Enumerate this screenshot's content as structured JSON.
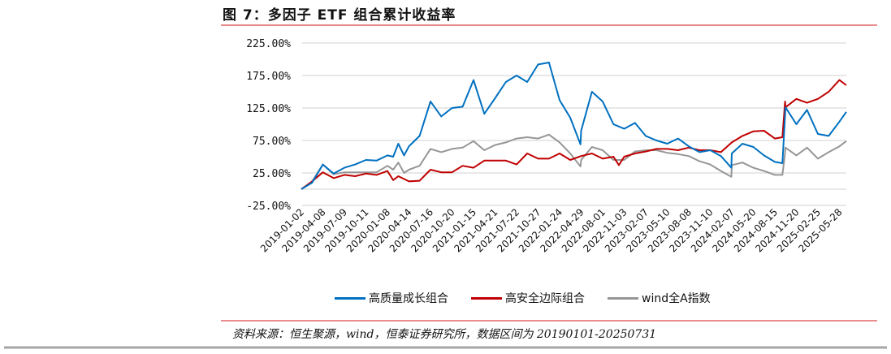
{
  "header": {
    "title": "图 7：多因子 ETF 组合累计收益率"
  },
  "footer": {
    "source": "资料来源：恒生聚源，wind，恒泰证券研究所，数据区间为 20190101-20250731"
  },
  "colors": {
    "accent_rule": "#e06666",
    "bottom_rule": "#a6a6a6",
    "grid": "#d9d9d9"
  },
  "chart_data": {
    "type": "line",
    "title": "",
    "xlabel": "",
    "ylabel": "",
    "ylim": [
      -25,
      225
    ],
    "y_ticks": [
      -25,
      25,
      75,
      125,
      175,
      225
    ],
    "y_tick_labels": [
      "-25.00%",
      "25.00%",
      "75.00%",
      "125.00%",
      "175.00%",
      "225.00%"
    ],
    "grid": "horizontal",
    "legend": "bottom",
    "x_tick_labels": [
      "2019-01-02",
      "2019-04-08",
      "2019-07-09",
      "2019-10-11",
      "2020-01-08",
      "2020-04-14",
      "2020-07-16",
      "2020-10-20",
      "2021-01-15",
      "2021-04-21",
      "2021-07-22",
      "2021-10-27",
      "2022-01-24",
      "2022-04-29",
      "2022-08-01",
      "2022-11-03",
      "2023-02-07",
      "2023-05-10",
      "2023-08-08",
      "2023-11-10",
      "2024-02-07",
      "2024-05-20",
      "2024-08-15",
      "2024-11-20",
      "2025-02-25",
      "2025-05-28"
    ],
    "x_end": "2025-07-31",
    "series": [
      {
        "name": "高质量成长组合",
        "color": "#0070c0",
        "points": [
          [
            "2019-01-02",
            0
          ],
          [
            "2019-02-19",
            10
          ],
          [
            "2019-04-08",
            38
          ],
          [
            "2019-05-24",
            24
          ],
          [
            "2019-07-09",
            33
          ],
          [
            "2019-08-25",
            38
          ],
          [
            "2019-10-11",
            45
          ],
          [
            "2019-11-24",
            44
          ],
          [
            "2020-01-08",
            52
          ],
          [
            "2020-02-03",
            50
          ],
          [
            "2020-02-26",
            70
          ],
          [
            "2020-03-23",
            52
          ],
          [
            "2020-04-14",
            66
          ],
          [
            "2020-05-30",
            82
          ],
          [
            "2020-07-16",
            135
          ],
          [
            "2020-09-02",
            112
          ],
          [
            "2020-10-20",
            125
          ],
          [
            "2020-12-02",
            127
          ],
          [
            "2021-01-15",
            168
          ],
          [
            "2021-03-04",
            116
          ],
          [
            "2021-04-21",
            140
          ],
          [
            "2021-06-06",
            165
          ],
          [
            "2021-07-22",
            175
          ],
          [
            "2021-09-08",
            165
          ],
          [
            "2021-10-27",
            192
          ],
          [
            "2021-12-11",
            195
          ],
          [
            "2022-01-24",
            137
          ],
          [
            "2022-03-12",
            110
          ],
          [
            "2022-04-26",
            69
          ],
          [
            "2022-04-29",
            90
          ],
          [
            "2022-06-15",
            150
          ],
          [
            "2022-08-01",
            135
          ],
          [
            "2022-09-17",
            100
          ],
          [
            "2022-11-03",
            93
          ],
          [
            "2022-12-21",
            102
          ],
          [
            "2023-02-07",
            82
          ],
          [
            "2023-03-25",
            75
          ],
          [
            "2023-05-10",
            70
          ],
          [
            "2023-06-24",
            78
          ],
          [
            "2023-08-08",
            66
          ],
          [
            "2023-09-24",
            57
          ],
          [
            "2023-11-10",
            60
          ],
          [
            "2023-12-24",
            51
          ],
          [
            "2024-02-05",
            33
          ],
          [
            "2024-02-07",
            55
          ],
          [
            "2024-03-29",
            70
          ],
          [
            "2024-05-20",
            65
          ],
          [
            "2024-07-02",
            52
          ],
          [
            "2024-08-15",
            42
          ],
          [
            "2024-09-18",
            40
          ],
          [
            "2024-09-30",
            114
          ],
          [
            "2024-10-02",
            126
          ],
          [
            "2024-11-20",
            100
          ],
          [
            "2025-01-07",
            122
          ],
          [
            "2025-02-25",
            85
          ],
          [
            "2025-04-12",
            82
          ],
          [
            "2025-05-28",
            104
          ],
          [
            "2025-07-31",
            119
          ]
        ]
      },
      {
        "name": "高安全边际组合",
        "color": "#c00000",
        "points": [
          [
            "2019-01-02",
            0
          ],
          [
            "2019-02-19",
            12
          ],
          [
            "2019-04-08",
            26
          ],
          [
            "2019-05-24",
            17
          ],
          [
            "2019-07-09",
            22
          ],
          [
            "2019-08-25",
            20
          ],
          [
            "2019-10-11",
            24
          ],
          [
            "2019-11-24",
            22
          ],
          [
            "2020-01-08",
            28
          ],
          [
            "2020-02-03",
            14
          ],
          [
            "2020-02-26",
            20
          ],
          [
            "2020-04-14",
            12
          ],
          [
            "2020-05-30",
            13
          ],
          [
            "2020-07-16",
            30
          ],
          [
            "2020-09-02",
            26
          ],
          [
            "2020-10-20",
            26
          ],
          [
            "2020-12-02",
            36
          ],
          [
            "2021-01-15",
            33
          ],
          [
            "2021-03-04",
            44
          ],
          [
            "2021-04-21",
            44
          ],
          [
            "2021-06-06",
            44
          ],
          [
            "2021-07-22",
            38
          ],
          [
            "2021-09-08",
            55
          ],
          [
            "2021-10-27",
            47
          ],
          [
            "2021-12-11",
            47
          ],
          [
            "2022-01-24",
            55
          ],
          [
            "2022-03-12",
            45
          ],
          [
            "2022-04-29",
            51
          ],
          [
            "2022-06-15",
            55
          ],
          [
            "2022-08-01",
            47
          ],
          [
            "2022-09-17",
            50
          ],
          [
            "2022-10-11",
            37
          ],
          [
            "2022-11-03",
            50
          ],
          [
            "2022-12-21",
            55
          ],
          [
            "2023-02-07",
            58
          ],
          [
            "2023-03-25",
            62
          ],
          [
            "2023-05-10",
            62
          ],
          [
            "2023-06-24",
            60
          ],
          [
            "2023-08-08",
            64
          ],
          [
            "2023-09-24",
            60
          ],
          [
            "2023-11-10",
            60
          ],
          [
            "2023-12-24",
            57
          ],
          [
            "2024-02-07",
            72
          ],
          [
            "2024-03-29",
            82
          ],
          [
            "2024-05-20",
            89
          ],
          [
            "2024-07-02",
            90
          ],
          [
            "2024-08-15",
            78
          ],
          [
            "2024-09-18",
            80
          ],
          [
            "2024-09-30",
            135
          ],
          [
            "2024-10-02",
            126
          ],
          [
            "2024-11-20",
            139
          ],
          [
            "2025-01-07",
            133
          ],
          [
            "2025-02-25",
            139
          ],
          [
            "2025-04-12",
            150
          ],
          [
            "2025-05-28",
            168
          ],
          [
            "2025-07-31",
            160
          ]
        ]
      },
      {
        "name": "wind全A指数",
        "color": "#969696",
        "points": [
          [
            "2019-01-02",
            0
          ],
          [
            "2019-02-19",
            12
          ],
          [
            "2019-04-08",
            38
          ],
          [
            "2019-05-24",
            23
          ],
          [
            "2019-07-09",
            26
          ],
          [
            "2019-08-25",
            26
          ],
          [
            "2019-10-11",
            26
          ],
          [
            "2019-11-24",
            26
          ],
          [
            "2020-01-08",
            36
          ],
          [
            "2020-02-03",
            30
          ],
          [
            "2020-02-26",
            41
          ],
          [
            "2020-03-23",
            25
          ],
          [
            "2020-04-14",
            30
          ],
          [
            "2020-05-30",
            36
          ],
          [
            "2020-07-16",
            62
          ],
          [
            "2020-09-02",
            57
          ],
          [
            "2020-10-20",
            62
          ],
          [
            "2020-12-02",
            64
          ],
          [
            "2021-01-15",
            74
          ],
          [
            "2021-03-04",
            60
          ],
          [
            "2021-04-21",
            68
          ],
          [
            "2021-06-06",
            72
          ],
          [
            "2021-07-22",
            78
          ],
          [
            "2021-09-08",
            80
          ],
          [
            "2021-10-27",
            78
          ],
          [
            "2021-12-11",
            84
          ],
          [
            "2022-01-24",
            72
          ],
          [
            "2022-03-12",
            55
          ],
          [
            "2022-04-26",
            35
          ],
          [
            "2022-04-29",
            45
          ],
          [
            "2022-06-15",
            65
          ],
          [
            "2022-08-01",
            60
          ],
          [
            "2022-09-17",
            45
          ],
          [
            "2022-11-03",
            45
          ],
          [
            "2022-12-21",
            58
          ],
          [
            "2023-02-07",
            60
          ],
          [
            "2023-03-25",
            60
          ],
          [
            "2023-05-10",
            56
          ],
          [
            "2023-06-24",
            54
          ],
          [
            "2023-08-08",
            51
          ],
          [
            "2023-09-24",
            43
          ],
          [
            "2023-11-10",
            38
          ],
          [
            "2023-12-24",
            28
          ],
          [
            "2024-02-05",
            19
          ],
          [
            "2024-02-07",
            37
          ],
          [
            "2024-03-29",
            41
          ],
          [
            "2024-05-20",
            33
          ],
          [
            "2024-07-02",
            28
          ],
          [
            "2024-08-15",
            22
          ],
          [
            "2024-09-18",
            22
          ],
          [
            "2024-09-30",
            56
          ],
          [
            "2024-10-02",
            64
          ],
          [
            "2024-11-20",
            52
          ],
          [
            "2025-01-07",
            64
          ],
          [
            "2025-02-25",
            47
          ],
          [
            "2025-04-12",
            57
          ],
          [
            "2025-05-28",
            66
          ],
          [
            "2025-07-31",
            74
          ]
        ]
      }
    ]
  }
}
